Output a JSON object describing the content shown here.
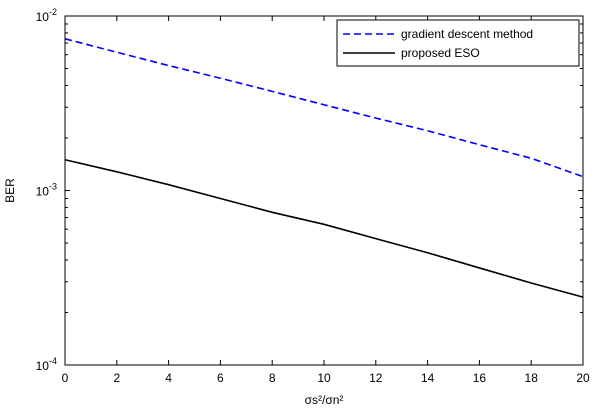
{
  "chart_data": {
    "type": "line",
    "xlabel": "σs²/σn²",
    "ylabel": "BER",
    "xlim": [
      0,
      20
    ],
    "ylim": [
      0.0001,
      0.01
    ],
    "yscale": "log",
    "grid": false,
    "legend_position": "top-right",
    "x_ticks": [
      {
        "value": 0,
        "label": "0"
      },
      {
        "value": 2,
        "label": "2"
      },
      {
        "value": 4,
        "label": "4"
      },
      {
        "value": 6,
        "label": "6"
      },
      {
        "value": 8,
        "label": "8"
      },
      {
        "value": 10,
        "label": "10"
      },
      {
        "value": 12,
        "label": "12"
      },
      {
        "value": 14,
        "label": "14"
      },
      {
        "value": 16,
        "label": "16"
      },
      {
        "value": 18,
        "label": "18"
      },
      {
        "value": 20,
        "label": "20"
      }
    ],
    "y_ticks": [
      {
        "value": 0.01,
        "base": "10",
        "exponent": "-2"
      },
      {
        "value": 0.001,
        "base": "10",
        "exponent": "-3"
      },
      {
        "value": 0.0001,
        "base": "10",
        "exponent": "-4"
      }
    ],
    "series": [
      {
        "name": "gradient descent method",
        "color": "#0000ff",
        "style": "dashed",
        "x": [
          0,
          2,
          4,
          6,
          8,
          10,
          12,
          14,
          16,
          18,
          20
        ],
        "y": [
          0.0074,
          0.0062,
          0.0052,
          0.0044,
          0.0037,
          0.0031,
          0.0026,
          0.0022,
          0.00183,
          0.00153,
          0.0012
        ]
      },
      {
        "name": "proposed ESO",
        "color": "#000000",
        "style": "solid",
        "x": [
          0,
          2,
          4,
          6,
          8,
          10,
          12,
          14,
          16,
          18,
          20
        ],
        "y": [
          0.0015,
          0.00128,
          0.00108,
          0.0009,
          0.00075,
          0.00064,
          0.00053,
          0.00044,
          0.00036,
          0.000295,
          0.000245
        ]
      }
    ]
  }
}
